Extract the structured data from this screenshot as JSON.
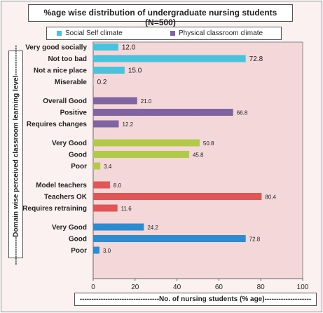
{
  "chart_data": {
    "type": "bar",
    "orientation": "horizontal",
    "title": "%age wise distribution of undergraduate nursing students (N=500)",
    "xlabel": "----------------------------------No. of  nursing students (% age)--------------------",
    "ylabel": "------------Domain wise perceived classroom learning level-------------",
    "xlim": [
      0,
      100
    ],
    "xticks": [
      "0",
      "20",
      "40",
      "60",
      "80",
      "100"
    ],
    "grid": false,
    "legend": {
      "placement": "top",
      "entries": [
        {
          "name": "Social Self climate",
          "color": "#4bc2dc"
        },
        {
          "name": "Physical classroom climate",
          "color": "#8064a2"
        }
      ]
    },
    "groups": [
      {
        "color": "#4bc2dc",
        "bars": [
          {
            "label": "Very good socially",
            "value": 12.0,
            "value_label": "12.0"
          },
          {
            "label": "Not too bad",
            "value": 72.8,
            "value_label": "72.8"
          },
          {
            "label": "Not a nice place",
            "value": 15.0,
            "value_label": "15.0"
          },
          {
            "label": "Miserable",
            "value": 0.2,
            "value_label": "0.2"
          }
        ]
      },
      {
        "color": "#8064a2",
        "bars": [
          {
            "label": "Overall Good",
            "value": 21.0,
            "value_label": "21.0"
          },
          {
            "label": "Positive",
            "value": 66.8,
            "value_label": "66.8"
          },
          {
            "label": "Requires changes",
            "value": 12.2,
            "value_label": "12.2"
          }
        ]
      },
      {
        "color": "#b2c94a",
        "bars": [
          {
            "label": "Very Good",
            "value": 50.8,
            "value_label": "50.8"
          },
          {
            "label": "Good",
            "value": 45.8,
            "value_label": "45.8"
          },
          {
            "label": "Poor",
            "value": 3.4,
            "value_label": "3.4"
          }
        ]
      },
      {
        "color": "#e05555",
        "bars": [
          {
            "label": "Model teachers",
            "value": 8.0,
            "value_label": "8.0"
          },
          {
            "label": "Teachers OK",
            "value": 80.4,
            "value_label": "80.4"
          },
          {
            "label": "Requires retraining",
            "value": 11.6,
            "value_label": "11.6"
          }
        ]
      },
      {
        "color": "#2e8bcf",
        "bars": [
          {
            "label": "Very Good",
            "value": 24.2,
            "value_label": "24.2"
          },
          {
            "label": "Good",
            "value": 72.8,
            "value_label": "72.8"
          },
          {
            "label": "Poor",
            "value": 3.0,
            "value_label": "3.0"
          }
        ]
      }
    ]
  }
}
